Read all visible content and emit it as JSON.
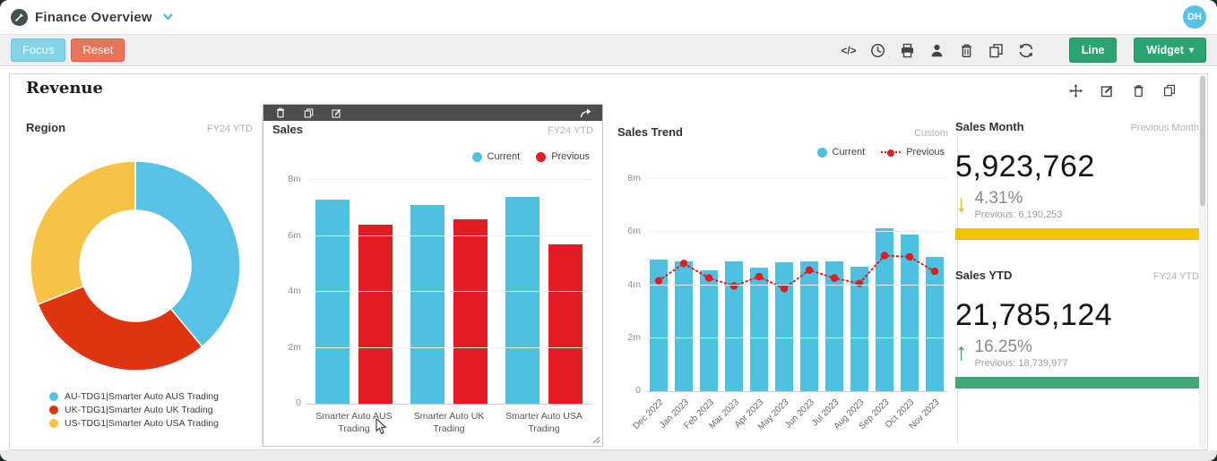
{
  "header": {
    "app_title": "Finance Overview",
    "avatar_initials": "DH"
  },
  "toolbar": {
    "focus_label": "Focus",
    "reset_label": "Reset",
    "icon_names": [
      "code-icon",
      "history-icon",
      "print-icon",
      "user-icon",
      "delete-icon",
      "copy-icon",
      "refresh-icon"
    ],
    "line_label": "Line",
    "widget_label": "Widget",
    "widget_caret": "▾"
  },
  "panel": {
    "title": "Revenue",
    "icon_names": [
      "move-icon",
      "edit-icon",
      "delete-icon",
      "copy-icon"
    ]
  },
  "region": {
    "title": "Region",
    "period": "FY24 YTD"
  },
  "sales": {
    "title": "Sales",
    "period": "FY24 YTD",
    "toolbar_icon_names": [
      "delete-icon",
      "copy-icon",
      "edit-icon",
      "share-icon"
    ]
  },
  "trend": {
    "title": "Sales Trend",
    "period": "Custom"
  },
  "kpis": {
    "month": {
      "title": "Sales Month",
      "period": "Previous Month",
      "value": "5,923,762",
      "delta": "4.31%",
      "direction": "down",
      "previous": "Previous: 6,190,253",
      "delta_color": "#f0b400",
      "bar_color": "#f4c300"
    },
    "ytd": {
      "title": "Sales YTD",
      "period": "FY24 YTD",
      "value": "21,785,124",
      "delta": "16.25%",
      "direction": "up",
      "previous": "Previous: 18,739,977",
      "delta_color": "#2f9e68",
      "bar_color": "#41a874"
    }
  },
  "chart_data": [
    {
      "name": "region",
      "type": "pie",
      "subtype": "donut",
      "title": "Region",
      "labels": [
        "AU-TDG1|Smarter Auto AUS Trading",
        "UK-TDG1|Smarter Auto UK Trading",
        "US-TDG1|Smarter Auto USA Trading"
      ],
      "values": [
        39,
        30,
        31
      ],
      "value_unit": "percent_estimated",
      "colors": [
        "#56c3e6",
        "#e0330f",
        "#f6c346"
      ],
      "legend_position": "bottom"
    },
    {
      "name": "sales",
      "type": "bar",
      "title": "Sales",
      "categories": [
        "Smarter Auto AUS Trading",
        "Smarter Auto UK Trading",
        "Smarter Auto USA Trading"
      ],
      "series": [
        {
          "name": "Current",
          "color": "#4ec1e0",
          "values": [
            7.3,
            7.1,
            7.4
          ]
        },
        {
          "name": "Previous",
          "color": "#e31b22",
          "values": [
            6.4,
            6.6,
            5.7
          ]
        }
      ],
      "value_unit": "millions",
      "ylim": [
        0,
        8
      ],
      "yticks": [
        "0",
        "2m",
        "4m",
        "6m",
        "8m"
      ],
      "grid": true,
      "legend_position": "top-right"
    },
    {
      "name": "trend",
      "type": "bar",
      "subtype": "bar+line-combo",
      "title": "Sales Trend",
      "categories": [
        "Dec 2022",
        "Jan 2023",
        "Feb 2023",
        "Mar 2023",
        "Apr 2023",
        "May 2023",
        "Jun 2023",
        "Jul 2023",
        "Aug 2023",
        "Sep 2023",
        "Oct 2023",
        "Nov 2023"
      ],
      "series": [
        {
          "name": "Current",
          "render": "bar",
          "color": "#4ec1e0",
          "values": [
            4.95,
            4.9,
            4.55,
            4.9,
            4.65,
            4.85,
            4.9,
            4.9,
            4.7,
            6.15,
            5.9,
            5.05
          ]
        },
        {
          "name": "Previous",
          "render": "line",
          "style": "dotted",
          "color": "#e01b22",
          "values": [
            4.2,
            4.85,
            4.3,
            4.0,
            4.35,
            3.9,
            4.6,
            4.3,
            4.1,
            5.15,
            5.1,
            4.55
          ]
        }
      ],
      "value_unit": "millions",
      "ylim": [
        0,
        8
      ],
      "yticks": [
        "0",
        "2m",
        "4m",
        "6m",
        "8m"
      ],
      "grid": true,
      "legend_position": "top-right"
    }
  ]
}
